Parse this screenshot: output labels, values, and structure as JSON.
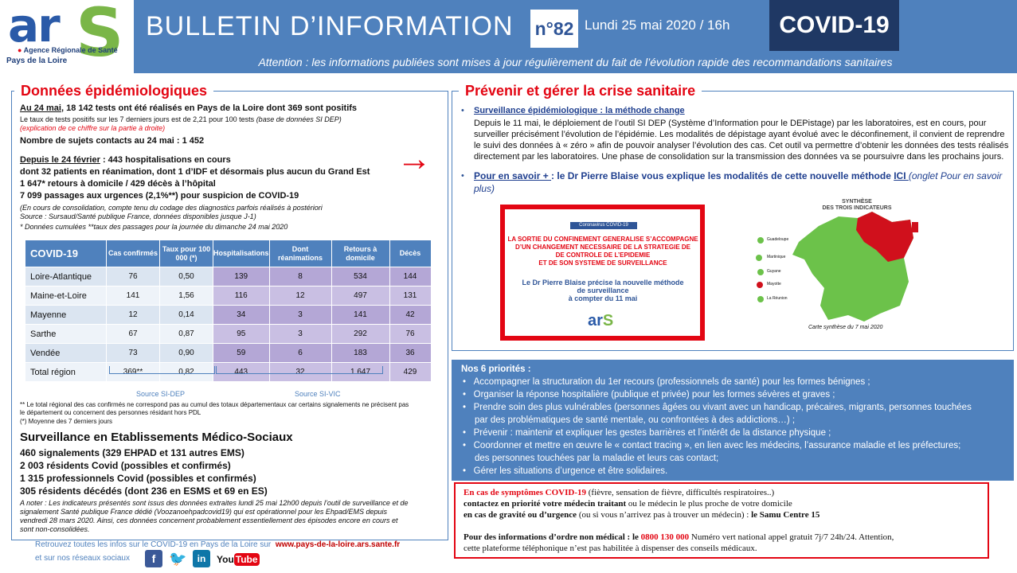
{
  "header": {
    "logo_ars": "ar",
    "logo_s": "S",
    "logo_sub1": "Agence Régionale de Santé",
    "logo_sub2": "Pays de la Loire",
    "title": "BULLETIN D’INFORMATION",
    "issue": "n°82",
    "date": "Lundi 25 mai 2020 / 16h",
    "topic": "COVID-19",
    "attention": "Attention : les informations publiées sont mises à jour régulièrement du fait de l’évolution rapide des recommandations sanitaires"
  },
  "left": {
    "title": "Données épidémiologiques",
    "tests_date": "Au 24 mai",
    "tests_text": ", 18 142 tests ont été réalisés en Pays de la Loire dont 369 sont positifs",
    "rate_text": "Le taux de tests positifs sur les 7 derniers jours est de 2,21  pour 100 tests",
    "rate_source": "(base de données SI DEP)",
    "rate_note": "(explication de ce chiffre sur la partie à droite)",
    "contacts": "Nombre de sujets contacts au 24 mai : 1 452",
    "hosp_date": "Depuis le 24 février",
    "hosp_text": " : 443 hospitalisations en cours",
    "rea_text": "dont 32 patients en réanimation, dont 1 d’IDF et désormais plus aucun du Grand Est",
    "home_text": "1 647* retours à domicile / 429 décès à l’hôpital",
    "urg_text": "7 099 passages aux urgences (2,1%**) pour suspicion de COVID-19",
    "note1": "(En cours de consolidation, compte tenu du codage des diagnostics parfois réalisés à postériori",
    "note2": "Source : Sursaud/Santé publique France, données disponibles jusque J-1)",
    "note3": "* Données cumulées   **taux des passages pour la journée du dimanche 24  mai 2020",
    "table": {
      "headers": [
        "COVID-19",
        "Cas confirmés",
        "Taux pour 100 000 (*)",
        "Hospitalisations",
        "Dont réanimations",
        "Retours à domicile",
        "Décès"
      ],
      "rows": [
        [
          "Loire-Atlantique",
          "76",
          "0,50",
          "139",
          "8",
          "534",
          "144"
        ],
        [
          "Maine-et-Loire",
          "141",
          "1,56",
          "116",
          "12",
          "497",
          "131"
        ],
        [
          "Mayenne",
          "12",
          "0,14",
          "34",
          "3",
          "141",
          "42"
        ],
        [
          "Sarthe",
          "67",
          "0,87",
          "95",
          "3",
          "292",
          "76"
        ],
        [
          "Vendée",
          "73",
          "0,90",
          "59",
          "6",
          "183",
          "36"
        ],
        [
          "Total région",
          "369**",
          "0,82",
          "443",
          "32",
          "1 647",
          "429"
        ]
      ]
    },
    "source_dep": "Source SI-DEP",
    "source_vic": "Source SI-VIC",
    "fn1": "** Le total régional des cas confirmés ne correspond pas au cumul des totaux départementaux car certains signalements ne précisent pas",
    "fn2": "le département ou concernent des personnes résidant hors PDL",
    "fn3": "(*)  Moyenne des 7 derniers jours",
    "ems_title": "Surveillance en Etablissements Médico-Sociaux",
    "ems1": "460 signalements (329 EHPAD et 131 autres EMS)",
    "ems2": "2 003 résidents Covid (possibles et confirmés)",
    "ems3": "1 315 professionnels Covid (possibles et confirmés)",
    "ems4": "305 résidents décédés (dont 236 en ESMS et 69 en ES)",
    "ems_note1": "A noter : Les indicateurs présentés sont issus des données extraites lundi 25 mai 12h00 depuis l’outil de surveillance et de",
    "ems_note2": "signalement Santé publique France dédié (Voozanoehpadcovid19) qui est opérationnel pour les Ehpad/EMS depuis",
    "ems_note3": "vendredi 28 mars 2020. Ainsi, ces données concernent probablement essentiellement des épisodes encore en cours et",
    "ems_note4": "sont non-consolidées.",
    "footer1": "Retrouvez toutes les infos sur le COVID-19 en Pays de la Loire sur",
    "footer_url": "www.pays-de-la-loire.ars.sante.fr",
    "footer2": "et sur nos réseaux sociaux"
  },
  "right": {
    "title": "Prévenir et gérer la crise sanitaire",
    "b1_link": "Surveillance épidémiologique : la méthode change",
    "b1_l1": "Depuis le 11 mai, le déploiement de l’outil SI DEP (Système d’Information pour le DEPistage) par les laboratoires, est en cours, pour",
    "b1_l2": "surveiller précisément l’évolution de l’épidémie. Les modalités de dépistage ayant évolué avec le déconfinement, il convient de reprendre",
    "b1_l3": "le suivi des données à « zéro » afin de pouvoir analyser l’évolution des cas. Cet outil va permettre d’obtenir les données des tests réalisés",
    "b1_l4": "directement par les laboratoires. Une phase de consolidation sur la transmission des données va se poursuivre dans les prochains jours.",
    "b2_link": "Pour en savoir + ",
    "b2_text": ": le Dr Pierre Blaise vous explique les modalités de cette nouvelle méthode ",
    "b2_ici": "ICI ",
    "b2_it1": "(onglet Pour en savoir",
    "b2_it2": "plus)",
    "video_header": "Coronavirus COVID-19",
    "video_l1": "LA SORTIE DU CONFINEMENT GENERALISE S’ACCOMPAGNE",
    "video_l2": "D’UN CHANGEMENT NECESSAIRE DE LA STRATEGIE DE",
    "video_l3": "DE CONTROLE DE L’EPIDEMIE",
    "video_l4": "ET DE SON SYSTEME DE SURVEILLANCE",
    "video_s1": "Le Dr Pierre Blaise précise la nouvelle méthode",
    "video_s2": "de surveillance",
    "video_s3": "à compter du 11 mai",
    "video_logo_a": "ar",
    "video_logo_s": "S",
    "map_title1": "SYNTHÈSE",
    "map_title2": "DES TROIS INDICATEURS",
    "map_labels": [
      "Guadeloupe",
      "Martinique",
      "Guyane",
      "Mayotte",
      "La Réunion"
    ],
    "map_caption": "Carte synthèse du 7 mai 2020"
  },
  "priorities": {
    "title": "Nos 6 priorités :",
    "items": [
      "Accompagner la structuration du 1er recours (professionnels de santé) pour les formes bénignes ;",
      "Organiser la réponse hospitalière (publique et privée) pour les formes sévères et graves ;",
      "Prendre soin des plus vulnérables (personnes âgées ou vivant avec un handicap, précaires, migrants, personnes touchées",
      "par des problématiques de santé mentale, ou confrontées à des addictions…) ;",
      "Prévenir : maintenir et expliquer les gestes barrières et l’intérêt de la distance physique ;",
      "Coordonner et mettre en œuvre le « contact tracing », en lien avec les médecins, l’assurance maladie et les préfectures;",
      "des personnes touchées par la maladie et leurs cas contact;",
      "Gérer les situations d’urgence et être solidaires."
    ]
  },
  "contact": {
    "l1_red": "En cas de symptômes COVID-19",
    "l1_rest": " (fièvre, sensation de fièvre, difficultés respiratoires..)",
    "l2_bold": "contactez en priorité votre médecin traitant",
    "l2_rest": " ou le médecin le plus proche de votre domicile",
    "l3_bold": "en cas de gravité ou d’urgence",
    "l3_rest": " (ou si vous n’arrivez pas à trouver un médecin) : ",
    "l3_samu": "le Samu Centre 15",
    "l4_bold": "Pour des informations d’ordre non médical : le ",
    "l4_num": "0800 130 000",
    "l4_rest": " Numéro vert national appel gratuit 7j/7 24h/24. Attention,",
    "l5": "cette plateforme téléphonique n’est pas habilitée à dispenser des conseils médicaux."
  }
}
